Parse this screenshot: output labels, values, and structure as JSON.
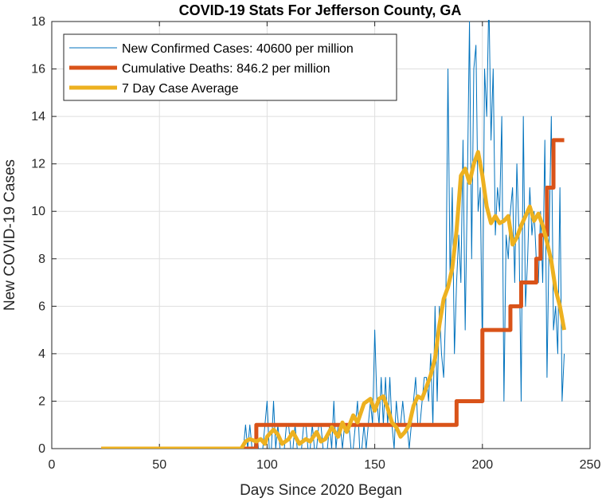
{
  "chart_data": {
    "type": "line",
    "title": "COVID-19 Stats For Jefferson County, GA",
    "xlabel": "Days Since 2020 Began",
    "ylabel": "New COVID-19 Cases",
    "xlim": [
      0,
      250
    ],
    "ylim": [
      0,
      18
    ],
    "xticks": [
      0,
      50,
      100,
      150,
      200,
      250
    ],
    "yticks": [
      0,
      2,
      4,
      6,
      8,
      10,
      12,
      14,
      16,
      18
    ],
    "grid": true,
    "legend_position": "top-left",
    "series": [
      {
        "name": "New Confirmed Cases: 40600 per million",
        "color": "#0072BD",
        "width": 1,
        "style": "line",
        "x": [
          23,
          89,
          90,
          91,
          92,
          93,
          94,
          95,
          96,
          97,
          98,
          99,
          100,
          101,
          102,
          103,
          104,
          105,
          106,
          107,
          108,
          109,
          110,
          111,
          112,
          113,
          114,
          115,
          116,
          117,
          118,
          119,
          120,
          121,
          122,
          123,
          124,
          125,
          126,
          127,
          128,
          129,
          130,
          131,
          132,
          133,
          134,
          135,
          136,
          137,
          138,
          139,
          140,
          141,
          142,
          143,
          144,
          145,
          146,
          147,
          148,
          149,
          150,
          151,
          152,
          153,
          154,
          155,
          156,
          157,
          158,
          159,
          160,
          161,
          162,
          163,
          164,
          165,
          166,
          167,
          168,
          169,
          170,
          171,
          172,
          173,
          174,
          175,
          176,
          177,
          178,
          179,
          180,
          181,
          182,
          183,
          184,
          185,
          186,
          187,
          188,
          189,
          190,
          191,
          192,
          193,
          194,
          195,
          196,
          197,
          198,
          199,
          200,
          201,
          202,
          203,
          204,
          205,
          206,
          207,
          208,
          209,
          210,
          211,
          212,
          213,
          214,
          215,
          216,
          217,
          218,
          219,
          220,
          221,
          222,
          223,
          224,
          225,
          226,
          227,
          228,
          229,
          230,
          231,
          232,
          233,
          234,
          235,
          236,
          237,
          238
        ],
        "values": [
          0,
          0,
          1,
          0,
          1,
          0,
          0,
          1,
          0,
          0,
          0,
          1,
          2,
          0,
          0,
          2,
          0,
          1,
          0,
          0,
          0,
          1,
          1,
          0,
          0,
          1,
          0,
          0,
          0,
          1,
          1,
          0,
          0,
          1,
          0,
          0,
          1,
          1,
          0,
          0,
          0,
          1,
          0,
          2,
          0,
          1,
          1,
          0,
          1,
          1,
          1,
          0,
          0,
          1,
          2,
          0,
          0,
          1,
          0,
          1,
          2,
          1,
          5,
          2,
          1,
          3,
          1,
          3,
          1,
          3,
          1,
          0,
          2,
          1,
          1,
          2,
          1,
          1,
          0,
          1,
          2,
          3,
          1,
          1,
          2,
          3,
          3,
          2,
          4,
          1,
          6,
          2,
          6,
          4,
          3,
          6,
          16,
          7,
          11,
          4,
          7,
          9,
          7,
          13,
          5,
          11,
          18,
          8,
          16,
          17,
          10,
          11,
          4,
          16,
          14,
          19,
          13,
          16,
          9,
          11,
          10,
          14,
          2,
          9,
          8,
          10,
          11,
          7,
          12,
          9,
          2,
          14,
          6,
          8,
          11,
          9,
          10,
          8,
          7,
          10,
          7,
          13,
          3,
          9,
          14,
          5,
          6,
          4,
          11,
          2,
          4
        ]
      },
      {
        "name": "Cumulative Deaths: 846.2 per million",
        "color": "#D95319",
        "width": 5,
        "style": "step",
        "x": [
          23,
          92,
          95,
          100,
          185,
          188,
          198,
          200,
          210,
          213,
          215,
          218,
          220,
          225,
          227,
          230,
          233,
          238
        ],
        "values": [
          0,
          0,
          1,
          1,
          1,
          2,
          2,
          5,
          5,
          6,
          6,
          7,
          7,
          8,
          9,
          11,
          13,
          13
        ]
      },
      {
        "name": "7 Day Case Average",
        "color": "#EDB120",
        "width": 5,
        "style": "line",
        "x": [
          23,
          88,
          90,
          92,
          95,
          97,
          99,
          100,
          103,
          105,
          107,
          110,
          112,
          115,
          118,
          120,
          123,
          125,
          127,
          130,
          133,
          135,
          137,
          140,
          142,
          145,
          148,
          150,
          152,
          154,
          156,
          158,
          160,
          162,
          164,
          166,
          168,
          170,
          172,
          174,
          176,
          178,
          180,
          182,
          184,
          186,
          188,
          190,
          192,
          194,
          196,
          198,
          200,
          202,
          204,
          206,
          208,
          210,
          212,
          214,
          216,
          218,
          220,
          222,
          224,
          226,
          228,
          230,
          232,
          234,
          236,
          238
        ],
        "values": [
          0,
          0,
          0.3,
          0.4,
          0.3,
          0.4,
          0.2,
          0.5,
          0.8,
          0.6,
          0.2,
          0.4,
          0.7,
          0.2,
          0.4,
          0.3,
          0.7,
          0.3,
          0.4,
          0.9,
          0.5,
          1.1,
          0.7,
          1.4,
          1.1,
          1.9,
          2.1,
          1.6,
          2.1,
          2.2,
          1.7,
          1.1,
          0.9,
          0.5,
          0.7,
          1.0,
          1.8,
          2.2,
          2.1,
          2.6,
          3.1,
          3.8,
          5.2,
          6.3,
          6.8,
          7.6,
          9.2,
          11.5,
          11.8,
          11.2,
          12.0,
          12.5,
          11.5,
          10.2,
          9.5,
          9.8,
          9.5,
          9.6,
          9.8,
          8.6,
          8.9,
          9.4,
          9.8,
          10.2,
          9.6,
          9.9,
          9.4,
          8.7,
          7.9,
          6.7,
          6.0,
          5.0
        ]
      }
    ]
  }
}
